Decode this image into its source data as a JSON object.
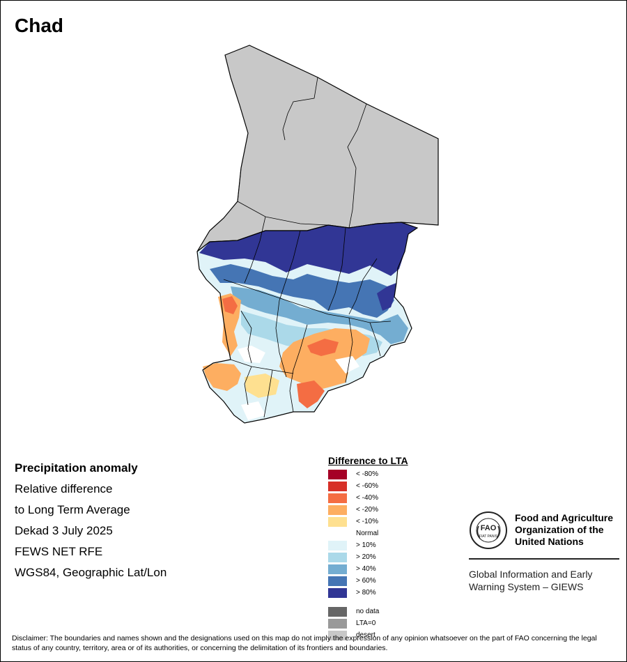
{
  "map": {
    "title": "Chad",
    "info": [
      "Precipitation anomaly",
      "Relative difference",
      "to Long Term Average",
      "Dekad 3 July 2025",
      "FEWS NET RFE",
      "WGS84, Geographic Lat/Lon"
    ],
    "colors": {
      "desert": "#c8c8c8",
      "border": "#000000"
    }
  },
  "legend": {
    "title": "Difference to LTA",
    "items": [
      {
        "label": "< -80%",
        "color": "#a50026"
      },
      {
        "label": "< -60%",
        "color": "#d73027"
      },
      {
        "label": "< -40%",
        "color": "#f46d43"
      },
      {
        "label": "< -20%",
        "color": "#fdae61"
      },
      {
        "label": "< -10%",
        "color": "#fee090"
      },
      {
        "label": "Normal",
        "color": "#ffffff"
      },
      {
        "label": "> 10%",
        "color": "#e0f3f8"
      },
      {
        "label": "> 20%",
        "color": "#abd9e9"
      },
      {
        "label": "> 40%",
        "color": "#74add1"
      },
      {
        "label": "> 60%",
        "color": "#4575b4"
      },
      {
        "label": "> 80%",
        "color": "#313695"
      }
    ],
    "extra": [
      {
        "label": "no data",
        "color": "#666666"
      },
      {
        "label": "LTA=0",
        "color": "#999999"
      },
      {
        "label": "desert",
        "color": "#c8c8c8"
      }
    ]
  },
  "fao": {
    "logo_text": "FAO",
    "logo_motto": "FIAT PANIS",
    "name_line1": "Food and Agriculture",
    "name_line2": "Organization of the",
    "name_line3": "United Nations",
    "giews_line1": "Global Information and Early",
    "giews_line2": "Warning System – GIEWS"
  },
  "disclaimer": "Disclaimer: The boundaries and names shown and the designations used on this map do not imply the expression of any opinion whatsoever on the part of FAO concerning the legal status of any country, territory, area or of its authorities, or concerning the delimitation of its frontiers and boundaries."
}
